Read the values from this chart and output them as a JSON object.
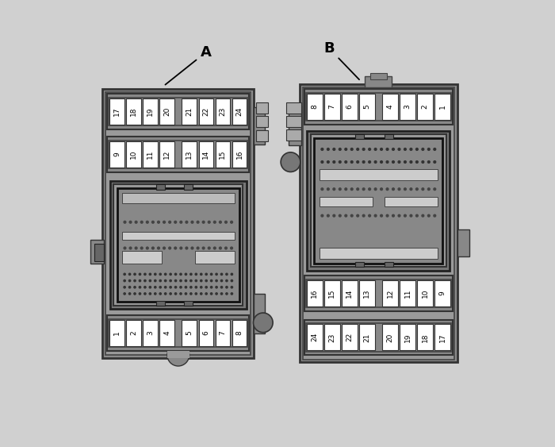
{
  "bg_color": "#d0d0d0",
  "panel_color_outer": "#888888",
  "panel_color_inner": "#999999",
  "panel_color_mid": "#b0b0b0",
  "fuse_bg": "#ffffff",
  "connector_dark": "#555555",
  "connector_mid": "#777777",
  "connector_light": "#aaaaaa",
  "label_A": "A",
  "label_B": "B",
  "panelA": {
    "fuses_top": [
      "17",
      "18",
      "19",
      "20",
      "21",
      "22",
      "23",
      "24"
    ],
    "fuses_mid": [
      "9",
      "10",
      "11",
      "12",
      "13",
      "14",
      "15",
      "16"
    ],
    "fuses_bot": [
      "1",
      "2",
      "3",
      "4",
      "5",
      "6",
      "7",
      "8"
    ]
  },
  "panelB": {
    "fuses_top": [
      "8",
      "7",
      "6",
      "5",
      "4",
      "3",
      "2",
      "1"
    ],
    "fuses_mid": [
      "16",
      "15",
      "14",
      "13",
      "12",
      "11",
      "10",
      "9"
    ],
    "fuses_bot": [
      "24",
      "23",
      "22",
      "21",
      "20",
      "19",
      "18",
      "17"
    ]
  }
}
